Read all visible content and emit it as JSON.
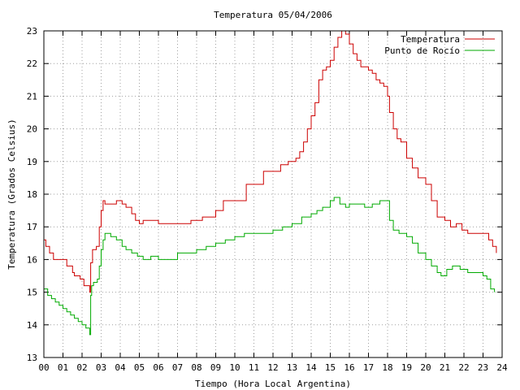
{
  "chart_data": {
    "type": "line",
    "title": "Temperatura 05/04/2006",
    "xlabel": "Tiempo (Hora Local Argentina)",
    "ylabel": "Temperatura (Grados Celsius)",
    "xlim": [
      0,
      24
    ],
    "ylim": [
      13,
      23
    ],
    "x_ticks": [
      "00",
      "01",
      "02",
      "03",
      "04",
      "05",
      "06",
      "07",
      "08",
      "09",
      "10",
      "11",
      "12",
      "13",
      "14",
      "15",
      "16",
      "17",
      "18",
      "19",
      "20",
      "21",
      "22",
      "23",
      "24"
    ],
    "y_ticks": [
      "13",
      "14",
      "15",
      "16",
      "17",
      "18",
      "19",
      "20",
      "21",
      "22",
      "23"
    ],
    "grid": true,
    "legend_position": "top-right",
    "series": [
      {
        "name": "Temperatura",
        "color": "#cc0000",
        "x": [
          0,
          0.1,
          0.3,
          0.5,
          0.6,
          1.0,
          1.2,
          1.5,
          1.6,
          1.9,
          2.1,
          2.3,
          2.4,
          2.45,
          2.55,
          2.75,
          2.9,
          3.0,
          3.1,
          3.2,
          3.4,
          3.6,
          3.8,
          4.1,
          4.3,
          4.6,
          4.8,
          5.0,
          5.2,
          5.5,
          6.0,
          6.5,
          7.0,
          7.3,
          7.7,
          8.0,
          8.3,
          8.6,
          9.0,
          9.4,
          9.8,
          10.2,
          10.6,
          11.0,
          11.5,
          12.0,
          12.4,
          12.8,
          13.0,
          13.2,
          13.4,
          13.6,
          13.8,
          14.0,
          14.2,
          14.4,
          14.6,
          14.8,
          15.0,
          15.2,
          15.4,
          15.6,
          15.8,
          16.0,
          16.2,
          16.4,
          16.6,
          16.8,
          17.0,
          17.2,
          17.4,
          17.6,
          17.8,
          18.0,
          18.1,
          18.3,
          18.5,
          18.7,
          19.0,
          19.3,
          19.6,
          19.8,
          20.0,
          20.3,
          20.6,
          20.8,
          21.0,
          21.3,
          21.6,
          21.9,
          22.2,
          22.6,
          22.9,
          23.1,
          23.3,
          23.5,
          23.7
        ],
        "y": [
          16.6,
          16.4,
          16.2,
          16.0,
          16.0,
          16.0,
          15.8,
          15.6,
          15.5,
          15.4,
          15.2,
          15.2,
          15.0,
          15.9,
          16.3,
          16.4,
          17.0,
          17.5,
          17.8,
          17.7,
          17.7,
          17.7,
          17.8,
          17.7,
          17.6,
          17.4,
          17.2,
          17.1,
          17.2,
          17.2,
          17.1,
          17.1,
          17.1,
          17.1,
          17.2,
          17.2,
          17.3,
          17.3,
          17.5,
          17.8,
          17.8,
          17.8,
          18.3,
          18.3,
          18.7,
          18.7,
          18.9,
          19.0,
          19.0,
          19.1,
          19.3,
          19.6,
          20.0,
          20.4,
          20.8,
          21.5,
          21.8,
          21.9,
          22.1,
          22.5,
          22.8,
          23.0,
          22.9,
          22.6,
          22.3,
          22.1,
          21.9,
          21.9,
          21.8,
          21.7,
          21.5,
          21.4,
          21.3,
          21.0,
          20.5,
          20.0,
          19.7,
          19.6,
          19.1,
          18.8,
          18.5,
          18.5,
          18.3,
          17.8,
          17.3,
          17.3,
          17.2,
          17.0,
          17.1,
          16.9,
          16.8,
          16.8,
          16.8,
          16.8,
          16.6,
          16.4,
          16.2
        ]
      },
      {
        "name": "Punto de Rocío",
        "color": "#00aa00",
        "x": [
          0,
          0.2,
          0.4,
          0.6,
          0.8,
          1.0,
          1.2,
          1.4,
          1.6,
          1.8,
          2.0,
          2.2,
          2.4,
          2.45,
          2.5,
          2.6,
          2.8,
          2.9,
          3.0,
          3.1,
          3.2,
          3.5,
          3.8,
          4.1,
          4.3,
          4.6,
          4.9,
          5.2,
          5.6,
          6.0,
          6.5,
          7.0,
          7.5,
          8.0,
          8.5,
          9.0,
          9.5,
          10.0,
          10.5,
          11.0,
          11.5,
          12.0,
          12.5,
          13.0,
          13.5,
          14.0,
          14.3,
          14.6,
          15.0,
          15.2,
          15.5,
          15.8,
          16.0,
          16.4,
          16.8,
          17.2,
          17.6,
          18.0,
          18.1,
          18.3,
          18.6,
          19.0,
          19.3,
          19.6,
          20.0,
          20.3,
          20.6,
          20.8,
          21.1,
          21.4,
          21.8,
          22.2,
          22.6,
          23.0,
          23.2,
          23.4,
          23.6
        ],
        "y": [
          15.1,
          14.9,
          14.8,
          14.7,
          14.6,
          14.5,
          14.4,
          14.3,
          14.2,
          14.1,
          14.0,
          13.9,
          13.7,
          14.9,
          15.2,
          15.3,
          15.4,
          15.8,
          16.3,
          16.6,
          16.8,
          16.7,
          16.6,
          16.4,
          16.3,
          16.2,
          16.1,
          16.0,
          16.1,
          16.0,
          16.0,
          16.2,
          16.2,
          16.3,
          16.4,
          16.5,
          16.6,
          16.7,
          16.8,
          16.8,
          16.8,
          16.9,
          17.0,
          17.1,
          17.3,
          17.4,
          17.5,
          17.6,
          17.8,
          17.9,
          17.7,
          17.6,
          17.7,
          17.7,
          17.6,
          17.7,
          17.8,
          17.8,
          17.2,
          16.9,
          16.8,
          16.7,
          16.5,
          16.2,
          16.0,
          15.8,
          15.6,
          15.5,
          15.7,
          15.8,
          15.7,
          15.6,
          15.6,
          15.5,
          15.4,
          15.1,
          15.0
        ]
      }
    ]
  }
}
